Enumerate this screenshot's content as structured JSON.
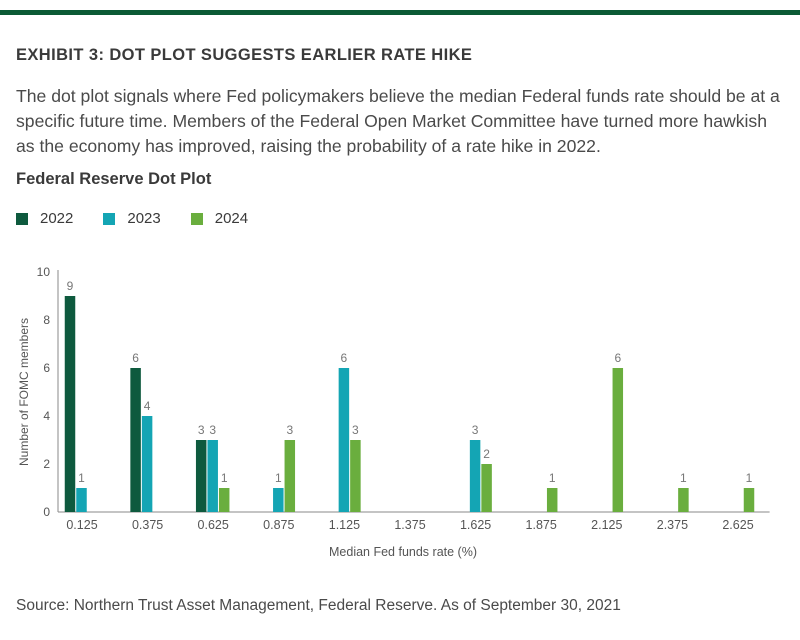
{
  "header": {
    "exhibit_title": "EXHIBIT 3: DOT PLOT SUGGESTS EARLIER RATE HIKE",
    "intro": "The dot plot signals where Fed policymakers believe the median Federal funds rate should be at a specific future time. Members of the Federal Open Market Committee have turned more hawkish as the economy has improved, raising the probability of a rate hike in 2022."
  },
  "chart_data": {
    "type": "bar",
    "title": "Federal Reserve Dot Plot",
    "xlabel": "Median Fed funds rate (%)",
    "ylabel": "Number of FOMC members",
    "ylim": [
      0,
      10
    ],
    "yticks": [
      "0",
      "2",
      "4",
      "6",
      "8",
      "10"
    ],
    "categories": [
      "0.125",
      "0.375",
      "0.625",
      "0.875",
      "1.125",
      "1.375",
      "1.625",
      "1.875",
      "2.125",
      "2.375",
      "2.625"
    ],
    "legend_position": "top-left",
    "grid": false,
    "series": [
      {
        "name": "2022",
        "color": "#0e5a3e",
        "values": [
          9,
          6,
          3,
          0,
          0,
          0,
          0,
          0,
          0,
          0,
          0
        ]
      },
      {
        "name": "2023",
        "color": "#14a5b4",
        "values": [
          1,
          4,
          3,
          1,
          6,
          0,
          3,
          0,
          0,
          0,
          0
        ]
      },
      {
        "name": "2024",
        "color": "#6aae3e",
        "values": [
          0,
          0,
          1,
          3,
          3,
          0,
          2,
          1,
          6,
          1,
          1
        ]
      }
    ]
  },
  "footer": {
    "source": "Source: Northern Trust Asset Management, Federal Reserve. As of September 30, 2021"
  }
}
